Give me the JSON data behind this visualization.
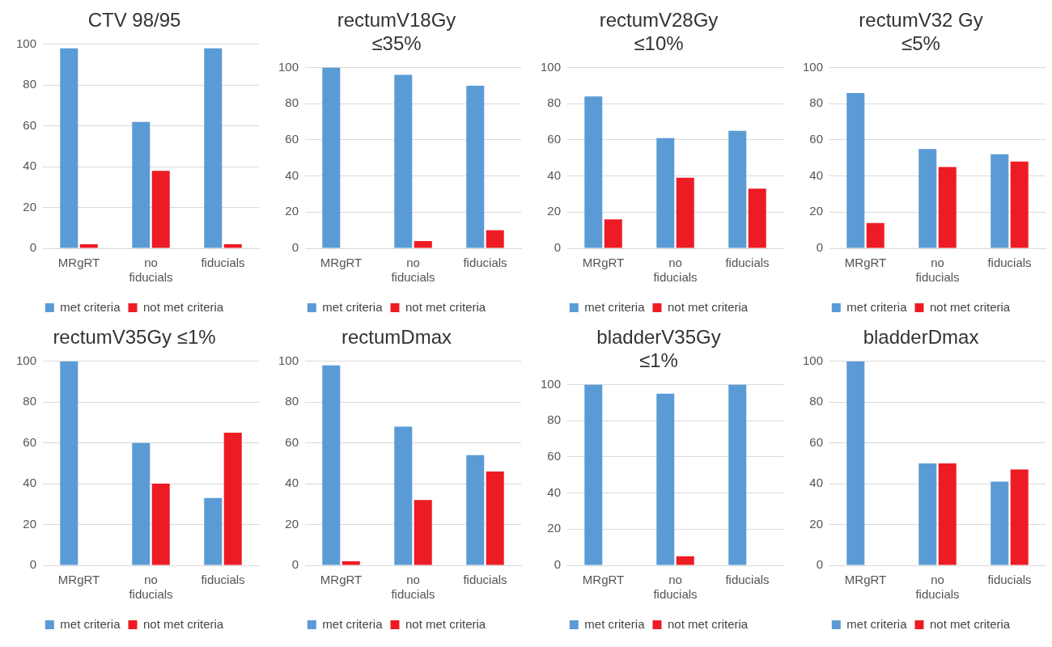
{
  "chart_data": [
    {
      "type": "bar",
      "title": "CTV 98/95",
      "categories": [
        "MRgRT",
        "no fiducials",
        "fiducials"
      ],
      "series": [
        {
          "name": "met criteria",
          "color": "#5b9bd5",
          "values": [
            98,
            62,
            98
          ]
        },
        {
          "name": "not met criteria",
          "color": "#ed1c24",
          "values": [
            2,
            38,
            2
          ]
        }
      ],
      "ylim": [
        0,
        100
      ],
      "yticks": [
        0,
        20,
        40,
        60,
        80,
        100
      ],
      "grid": "y",
      "legend": "bottom"
    },
    {
      "type": "bar",
      "title": "rectumV18Gy\n≤35%",
      "categories": [
        "MRgRT",
        "no fiducials",
        "fiducials"
      ],
      "series": [
        {
          "name": "met criteria",
          "color": "#5b9bd5",
          "values": [
            100,
            96,
            90
          ]
        },
        {
          "name": "not met criteria",
          "color": "#ed1c24",
          "values": [
            0,
            4,
            10
          ]
        }
      ],
      "ylim": [
        0,
        100
      ],
      "yticks": [
        0,
        20,
        40,
        60,
        80,
        100
      ],
      "grid": "y",
      "legend": "bottom"
    },
    {
      "type": "bar",
      "title": "rectumV28Gy\n≤10%",
      "categories": [
        "MRgRT",
        "no fiducials",
        "fiducials"
      ],
      "series": [
        {
          "name": "met criteria",
          "color": "#5b9bd5",
          "values": [
            84,
            61,
            65
          ]
        },
        {
          "name": "not met criteria",
          "color": "#ed1c24",
          "values": [
            16,
            39,
            33
          ]
        }
      ],
      "ylim": [
        0,
        100
      ],
      "yticks": [
        0,
        20,
        40,
        60,
        80,
        100
      ],
      "grid": "y",
      "legend": "bottom"
    },
    {
      "type": "bar",
      "title": "rectumV32 Gy\n≤5%",
      "categories": [
        "MRgRT",
        "no fiducials",
        "fiducials"
      ],
      "series": [
        {
          "name": "met criteria",
          "color": "#5b9bd5",
          "values": [
            86,
            55,
            52
          ]
        },
        {
          "name": "not met criteria",
          "color": "#ed1c24",
          "values": [
            14,
            45,
            48
          ]
        }
      ],
      "ylim": [
        0,
        100
      ],
      "yticks": [
        0,
        20,
        40,
        60,
        80,
        100
      ],
      "grid": "y",
      "legend": "bottom"
    },
    {
      "type": "bar",
      "title": "rectumV35Gy ≤1%",
      "categories": [
        "MRgRT",
        "no fiducials",
        "fiducials"
      ],
      "series": [
        {
          "name": "met criteria",
          "color": "#5b9bd5",
          "values": [
            100,
            60,
            33
          ]
        },
        {
          "name": "not met criteria",
          "color": "#ed1c24",
          "values": [
            0,
            40,
            65
          ]
        }
      ],
      "ylim": [
        0,
        100
      ],
      "yticks": [
        0,
        20,
        40,
        60,
        80,
        100
      ],
      "grid": "y",
      "legend": "bottom"
    },
    {
      "type": "bar",
      "title": "rectumDmax",
      "categories": [
        "MRgRT",
        "no fiducials",
        "fiducials"
      ],
      "series": [
        {
          "name": "met criteria",
          "color": "#5b9bd5",
          "values": [
            98,
            68,
            54
          ]
        },
        {
          "name": "not met criteria",
          "color": "#ed1c24",
          "values": [
            2,
            32,
            46
          ]
        }
      ],
      "ylim": [
        0,
        100
      ],
      "yticks": [
        0,
        20,
        40,
        60,
        80,
        100
      ],
      "grid": "y",
      "legend": "bottom"
    },
    {
      "type": "bar",
      "title": "bladderV35Gy\n≤1%",
      "categories": [
        "MRgRT",
        "no fiducials",
        "fiducials"
      ],
      "series": [
        {
          "name": "met criteria",
          "color": "#5b9bd5",
          "values": [
            100,
            95,
            100
          ]
        },
        {
          "name": "not met criteria",
          "color": "#ed1c24",
          "values": [
            0,
            5,
            0
          ]
        }
      ],
      "ylim": [
        0,
        100
      ],
      "yticks": [
        0,
        20,
        40,
        60,
        80,
        100
      ],
      "grid": "y",
      "legend": "bottom"
    },
    {
      "type": "bar",
      "title": "bladderDmax",
      "categories": [
        "MRgRT",
        "no fiducials",
        "fiducials"
      ],
      "series": [
        {
          "name": "met criteria",
          "color": "#5b9bd5",
          "values": [
            100,
            50,
            41
          ]
        },
        {
          "name": "not met criteria",
          "color": "#ed1c24",
          "values": [
            0,
            50,
            47
          ]
        }
      ],
      "ylim": [
        0,
        100
      ],
      "yticks": [
        0,
        20,
        40,
        60,
        80,
        100
      ],
      "grid": "y",
      "legend": "bottom"
    }
  ]
}
